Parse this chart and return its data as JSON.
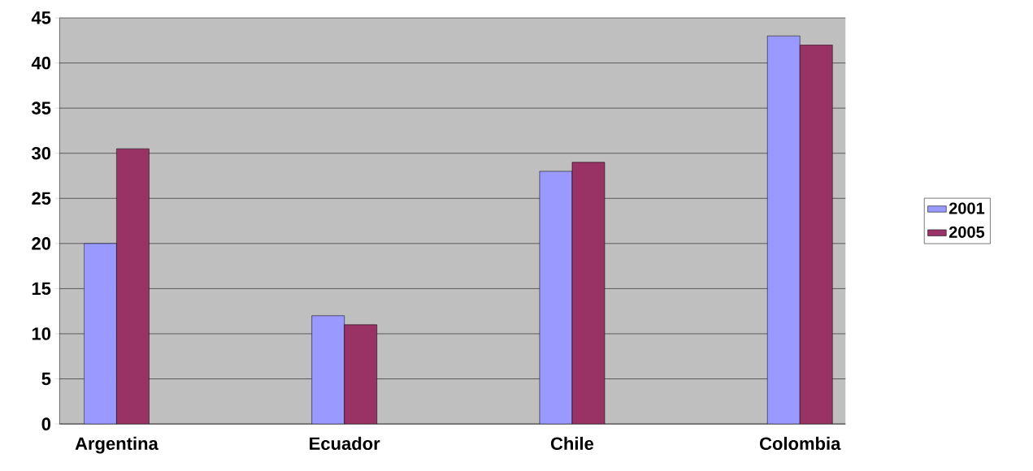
{
  "chart_data": {
    "type": "bar",
    "categories": [
      "Argentina",
      "Ecuador",
      "Chile",
      "Colombia"
    ],
    "series": [
      {
        "name": "2001",
        "color": "#9999ff",
        "values": [
          20,
          12,
          28,
          43
        ]
      },
      {
        "name": "2005",
        "color": "#993366",
        "values": [
          30.5,
          11,
          29,
          42
        ]
      }
    ],
    "ylim": [
      0,
      45
    ],
    "yticks": [
      0,
      5,
      10,
      15,
      20,
      25,
      30,
      35,
      40,
      45
    ],
    "grid": "y",
    "legend": "right"
  }
}
